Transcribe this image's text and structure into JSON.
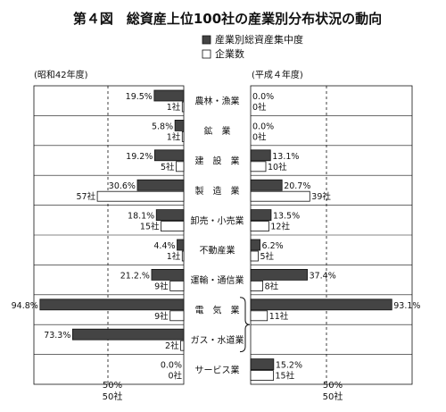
{
  "title": "第４図　総資産上位100社の産業別分布状況の動向",
  "legend": {
    "share_label": "産業別総資産集中度",
    "count_label": "企業数"
  },
  "panels": {
    "left_label": "(昭和42年度)",
    "right_label": "(平成４年度)"
  },
  "axis_ticks": {
    "left_pct": "50%",
    "left_count": "50社",
    "right_pct": "50%",
    "right_count": "50社"
  },
  "colors": {
    "share_fill": "#444444",
    "count_fill": "#ffffff",
    "stroke": "#111111"
  },
  "chart_data": {
    "type": "bar",
    "orientation": "horizontal-mirrored",
    "categories": [
      "農林・漁業",
      "鉱　業",
      "建　設　業",
      "製　造　業",
      "卸売・小売業",
      "不動産業",
      "運輸・通信業",
      "電　気　業",
      "ガス・水道業",
      "サービス業"
    ],
    "series": [
      {
        "name": "産業別総資産集中度",
        "panel": "昭和42年度",
        "unit": "%",
        "values": [
          19.5,
          5.8,
          19.2,
          30.6,
          18.1,
          4.4,
          21.2,
          94.8,
          73.3,
          0.0
        ],
        "labels": [
          "19.5%",
          "5.8%",
          "19.2%",
          "30.6%",
          "18.1%",
          "4.4%",
          "21.2.%",
          "94.8%",
          "73.3%",
          "0.0%"
        ]
      },
      {
        "name": "企業数",
        "panel": "昭和42年度",
        "unit": "社",
        "values": [
          1,
          1,
          5,
          57,
          15,
          1,
          9,
          9,
          2,
          0
        ],
        "labels": [
          "1社",
          "1社",
          "5社",
          "57社",
          "15社",
          "1社",
          "9社",
          "9社",
          "2社",
          "0社"
        ]
      },
      {
        "name": "産業別総資産集中度",
        "panel": "平成４年度",
        "unit": "%",
        "values": [
          0.0,
          0.0,
          13.1,
          20.7,
          13.5,
          6.2,
          37.4,
          93.1,
          null,
          15.2
        ],
        "labels": [
          "0.0%",
          "0.0%",
          "13.1%",
          "20.7%",
          "13.5%",
          "6.2%",
          "37.4%",
          "93.1%",
          "",
          "15.2%"
        ]
      },
      {
        "name": "企業数",
        "panel": "平成４年度",
        "unit": "社",
        "values": [
          0,
          0,
          10,
          39,
          12,
          5,
          8,
          11,
          null,
          15
        ],
        "labels": [
          "0社",
          "0社",
          "10社",
          "39社",
          "12社",
          "5社",
          "8社",
          "11社",
          "",
          "15社"
        ]
      }
    ],
    "xlim": [
      0,
      100
    ],
    "reference_line": 50,
    "grid": false,
    "legend_position": "top-right"
  }
}
